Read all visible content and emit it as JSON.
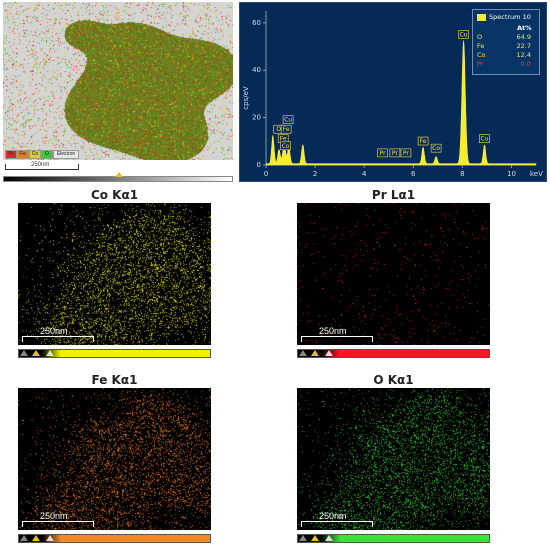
{
  "composite": {
    "legend_chips": [
      {
        "label": "Pr",
        "color": "#e8252c"
      },
      {
        "label": "Fe",
        "color": "#e07b24"
      },
      {
        "label": "Co",
        "color": "#d6d21e"
      },
      {
        "label": "O",
        "color": "#35c63a"
      },
      {
        "label": "Electron",
        "color": "#e6e6e6"
      }
    ],
    "scale_label": "250nm"
  },
  "spectrum": {
    "legend_title": "Spectrum 10",
    "legend_header": "At%",
    "ylabel": "cps/eV",
    "xlabel": "keV",
    "composition": [
      {
        "element": "O",
        "value": "64.9",
        "color": "#ffe14a"
      },
      {
        "element": "Fe",
        "value": "22.7",
        "color": "#ffe14a"
      },
      {
        "element": "Co",
        "value": "12.4",
        "color": "#ffe14a"
      },
      {
        "element": "Pr",
        "value": "0.0",
        "color": "#ff3a3a"
      }
    ],
    "chart_data": {
      "type": "line",
      "xlabel": "keV",
      "ylabel": "cps/eV",
      "xlim": [
        0,
        11
      ],
      "ylim": [
        0,
        65
      ],
      "x_ticks": [
        "0",
        "2",
        "4",
        "6",
        "8",
        "10"
      ],
      "y_ticks": [
        "0",
        "20",
        "40",
        "60"
      ],
      "peaks": [
        {
          "x": 0.28,
          "y": 12
        },
        {
          "x": 0.53,
          "y": 6
        },
        {
          "x": 0.71,
          "y": 5
        },
        {
          "x": 0.78,
          "y": 4
        },
        {
          "x": 0.93,
          "y": 7
        },
        {
          "x": 1.5,
          "y": 8
        },
        {
          "x": 6.4,
          "y": 7
        },
        {
          "x": 6.93,
          "y": 3
        },
        {
          "x": 8.05,
          "y": 52
        },
        {
          "x": 8.9,
          "y": 8
        }
      ],
      "labels": [
        {
          "text": "Cu",
          "x": 0.9,
          "y": 17
        },
        {
          "text": "O",
          "x": 0.52,
          "y": 13
        },
        {
          "text": "Fe",
          "x": 0.82,
          "y": 13
        },
        {
          "text": "Fe",
          "x": 0.7,
          "y": 9
        },
        {
          "text": "Co",
          "x": 0.8,
          "y": 6
        },
        {
          "text": "Pr",
          "x": 4.75,
          "y": 3
        },
        {
          "text": "Pr",
          "x": 5.25,
          "y": 3
        },
        {
          "text": "Pr",
          "x": 5.7,
          "y": 3
        },
        {
          "text": "Fe",
          "x": 6.4,
          "y": 8
        },
        {
          "text": "Co",
          "x": 6.93,
          "y": 5
        },
        {
          "text": "Cu",
          "x": 8.05,
          "y": 53
        },
        {
          "text": "Cu",
          "x": 8.9,
          "y": 9
        }
      ]
    }
  },
  "maps": [
    {
      "id": "co",
      "title": "Co Kα1",
      "color": "#e6e020",
      "bar_color": "#f2f200",
      "scale_label": "250nm"
    },
    {
      "id": "pr",
      "title": "Pr Lα1",
      "color": "#e3201f",
      "bar_color": "#ee1c1c",
      "scale_label": "250nm"
    },
    {
      "id": "fe",
      "title": "Fe Kα1",
      "color": "#e97a23",
      "bar_color": "#f08a26",
      "scale_label": "250nm"
    },
    {
      "id": "o",
      "title": "O Kα1",
      "color": "#33d23a",
      "bar_color": "#3ee03a",
      "scale_label": "250nm"
    }
  ]
}
